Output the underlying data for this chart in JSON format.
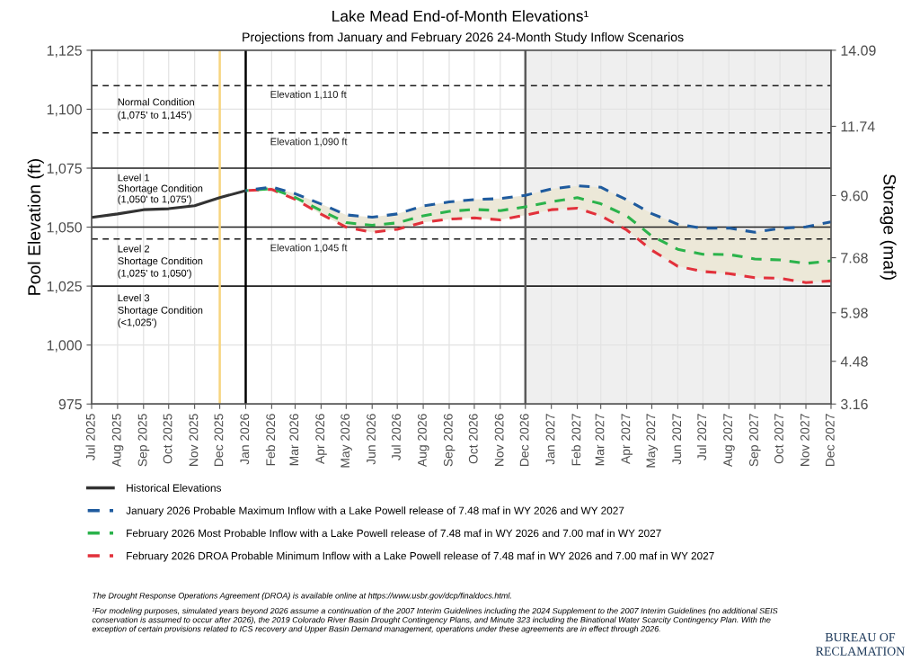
{
  "chart_data": {
    "type": "line",
    "title": "Lake Mead End-of-Month Elevations¹",
    "subtitle": "Projections from January and February 2026 24-Month Study Inflow Scenarios",
    "ylabel": "Pool Elevation (ft)",
    "y2label": "Storage (maf)",
    "xlim": [
      "2025-07",
      "2027-12"
    ],
    "xticks": [
      {
        "value": "2025-07",
        "label": "Jul 2025"
      },
      {
        "value": "2025-08",
        "label": "Aug 2025"
      },
      {
        "value": "2025-09",
        "label": "Sep 2025"
      },
      {
        "value": "2025-10",
        "label": "Oct 2025"
      },
      {
        "value": "2025-11",
        "label": "Nov 2025"
      },
      {
        "value": "2025-12",
        "label": "Dec 2025"
      },
      {
        "value": "2026-01",
        "label": "Jan 2026"
      },
      {
        "value": "2026-02",
        "label": "Feb 2026"
      },
      {
        "value": "2026-03",
        "label": "Mar 2026"
      },
      {
        "value": "2026-04",
        "label": "Apr 2026"
      },
      {
        "value": "2026-05",
        "label": "May 2026"
      },
      {
        "value": "2026-06",
        "label": "Jun 2026"
      },
      {
        "value": "2026-07",
        "label": "Jul 2026"
      },
      {
        "value": "2026-08",
        "label": "Aug 2026"
      },
      {
        "value": "2026-09",
        "label": "Sep 2026"
      },
      {
        "value": "2026-10",
        "label": "Oct 2026"
      },
      {
        "value": "2026-11",
        "label": "Nov 2026"
      },
      {
        "value": "2026-12",
        "label": "Dec 2026"
      },
      {
        "value": "2027-01",
        "label": "Jan 2027"
      },
      {
        "value": "2027-02",
        "label": "Feb 2027"
      },
      {
        "value": "2027-03",
        "label": "Mar 2027"
      },
      {
        "value": "2027-04",
        "label": "Apr 2027"
      },
      {
        "value": "2027-05",
        "label": "May 2027"
      },
      {
        "value": "2027-06",
        "label": "Jun 2027"
      },
      {
        "value": "2027-07",
        "label": "Jul 2027"
      },
      {
        "value": "2027-08",
        "label": "Aug 2027"
      },
      {
        "value": "2027-09",
        "label": "Sep 2027"
      },
      {
        "value": "2027-10",
        "label": "Oct 2027"
      },
      {
        "value": "2027-11",
        "label": "Nov 2027"
      },
      {
        "value": "2027-12",
        "label": "Dec 2027"
      }
    ],
    "ylim": [
      975,
      1125
    ],
    "yticks": [
      975,
      {
        "value": 1000,
        "label": "1,000"
      },
      {
        "value": 1025,
        "label": "1,025"
      },
      {
        "value": 1050,
        "label": "1,050"
      },
      {
        "value": 1075,
        "label": "1,075"
      },
      {
        "value": 1100,
        "label": "1,100"
      },
      {
        "value": 1125,
        "label": "1,125"
      }
    ],
    "y2lim": [
      3.16,
      14.09
    ],
    "y2ticks": [
      3.16,
      4.48,
      5.98,
      7.68,
      {
        "value": 9.6,
        "label": "9.60"
      },
      11.74,
      14.09
    ],
    "grid": true,
    "legend": "bottom",
    "series": [
      {
        "name": "Historical Elevations",
        "color": "#333333",
        "line_style": "solid",
        "x": [
          "2025-07",
          "2025-08",
          "2025-09",
          "2025-10",
          "2025-11",
          "2025-12",
          "2026-01"
        ],
        "values": [
          1054.1,
          1055.6,
          1057.4,
          1057.8,
          1059.1,
          1062.5,
          1065.5
        ]
      },
      {
        "name": "January 2026 Probable Maximum Inflow with a Lake Powell release of 7.48 maf in WY 2026 and WY 2027",
        "color": "#1f5b9e",
        "line_style": "dashed",
        "x": [
          "2026-01",
          "2026-02",
          "2026-03",
          "2026-04",
          "2026-05",
          "2026-06",
          "2026-07",
          "2026-08",
          "2026-09",
          "2026-10",
          "2026-11",
          "2026-12",
          "2027-01",
          "2027-02",
          "2027-03",
          "2027-04",
          "2027-05",
          "2027-06",
          "2027-07",
          "2027-08",
          "2027-09",
          "2027-10",
          "2027-11",
          "2027-12"
        ],
        "values": [
          1065.5,
          1067.0,
          1064.2,
          1059.8,
          1055.2,
          1054.2,
          1055.6,
          1059.0,
          1060.7,
          1061.7,
          1062.1,
          1063.5,
          1066.2,
          1067.5,
          1066.9,
          1061.6,
          1055.7,
          1051.2,
          1049.5,
          1049.6,
          1047.8,
          1049.5,
          1050.1,
          1052.2
        ]
      },
      {
        "name": "February 2026 Most Probable Inflow with a Lake Powell release of 7.48 maf in WY 2026 and 7.00 maf in WY 2027",
        "color": "#2bb34b",
        "line_style": "dashed",
        "x": [
          "2026-01",
          "2026-02",
          "2026-03",
          "2026-04",
          "2026-05",
          "2026-06",
          "2026-07",
          "2026-08",
          "2026-09",
          "2026-10",
          "2026-11",
          "2026-12",
          "2027-01",
          "2027-02",
          "2027-03",
          "2027-04",
          "2027-05",
          "2027-06",
          "2027-07",
          "2027-08",
          "2027-09",
          "2027-10",
          "2027-11",
          "2027-12"
        ],
        "values": [
          1065.5,
          1066.3,
          1062.6,
          1057.0,
          1051.9,
          1050.8,
          1051.8,
          1054.8,
          1056.7,
          1057.5,
          1057.0,
          1058.6,
          1060.8,
          1062.5,
          1059.9,
          1054.8,
          1046.2,
          1040.6,
          1038.5,
          1038.4,
          1036.5,
          1036.1,
          1034.6,
          1035.7
        ],
        "lower": [
          1065.5,
          1066.0,
          1061.8,
          1055.5,
          1050.0,
          1047.8,
          1049.1,
          1052.0,
          1053.4,
          1053.9,
          1053.1,
          1055.1,
          1057.4,
          1058.0,
          1054.8,
          1048.8,
          1040.2,
          1033.4,
          1031.2,
          1030.3,
          1028.6,
          1028.3,
          1026.5,
          1027.2
        ],
        "upper": [
          1065.5,
          1067.0,
          1064.2,
          1059.8,
          1055.2,
          1054.2,
          1055.6,
          1059.0,
          1060.7,
          1061.7,
          1062.1,
          1063.5,
          1066.2,
          1067.5,
          1066.9,
          1061.6,
          1055.7,
          1051.2,
          1049.5,
          1049.6,
          1047.8,
          1049.5,
          1050.1,
          1052.2
        ]
      },
      {
        "name": "February 2026 DROA Probable Minimum Inflow with a Lake Powell release of 7.48 maf in WY 2026 and 7.00 maf in WY 2027",
        "color": "#e2313b",
        "line_style": "dashed",
        "x": [
          "2026-01",
          "2026-02",
          "2026-03",
          "2026-04",
          "2026-05",
          "2026-06",
          "2026-07",
          "2026-08",
          "2026-09",
          "2026-10",
          "2026-11",
          "2026-12",
          "2027-01",
          "2027-02",
          "2027-03",
          "2027-04",
          "2027-05",
          "2027-06",
          "2027-07",
          "2027-08",
          "2027-09",
          "2027-10",
          "2027-11",
          "2027-12"
        ],
        "values": [
          1065.5,
          1066.0,
          1061.8,
          1055.5,
          1050.0,
          1047.8,
          1049.1,
          1052.0,
          1053.4,
          1053.9,
          1053.1,
          1055.1,
          1057.4,
          1058.0,
          1054.8,
          1048.8,
          1040.2,
          1033.4,
          1031.2,
          1030.3,
          1028.6,
          1028.3,
          1026.5,
          1027.2
        ]
      }
    ],
    "bands": [
      {
        "axis": "x",
        "from": "2026-12",
        "to": "2027-12",
        "color": "#efefef"
      }
    ],
    "ref_lines": [
      {
        "axis": "y",
        "value": 1110,
        "label": "Elevation 1,110 ft",
        "line_style": "dashed",
        "color": "#1a1a1a"
      },
      {
        "axis": "y",
        "value": 1090,
        "label": "Elevation 1,090 ft",
        "line_style": "dashed",
        "color": "#1a1a1a"
      },
      {
        "axis": "y",
        "value": 1045,
        "label": "Elevation 1,045 ft",
        "line_style": "dashed",
        "color": "#1a1a1a"
      },
      {
        "axis": "y",
        "value": 1075,
        "line_style": "solid",
        "color": "#222222"
      },
      {
        "axis": "y",
        "value": 1050,
        "line_style": "solid",
        "color": "#222222"
      },
      {
        "axis": "y",
        "value": 1025,
        "line_style": "solid",
        "color": "#222222"
      },
      {
        "axis": "x",
        "value": "2025-12",
        "line_style": "solid",
        "color": "#f7d57e"
      },
      {
        "axis": "x",
        "value": "2026-01",
        "line_style": "solid",
        "color": "#000000"
      },
      {
        "axis": "x",
        "value": "2026-12",
        "line_style": "solid",
        "color": "#5a5a5a"
      }
    ],
    "annotations": [
      "Normal Condition\n(1,075' to 1,145')",
      "Level 1\nShortage Condition\n(1,050' to 1,075')",
      "Level 2\nShortage Condition\n(1,025' to 1,050')",
      "Level 3\nShortage Condition\n(<1,025')",
      "The Drought Response Operations Agreement (DROA) is available online at https://www.usbr.gov/dcp/finaldocs.html.",
      "¹For modeling purposes, simulated years beyond 2026 assume a continuation of the 2007 Interim Guidelines including the 2024 Supplement to the 2007 Interim Guidelines (no additional SEIS\nconservation is assumed to occur after 2026), the 2019 Colorado River Basin Drought Contingency Plans, and Minute 323 including the Binational Water Scarcity Contingency Plan. With the\nexception of certain provisions related to ICS recovery and Upper Basin Demand management, operations under these agreements are in effect through 2026.",
      "BUREAU OF\nRECLAMATION"
    ]
  }
}
